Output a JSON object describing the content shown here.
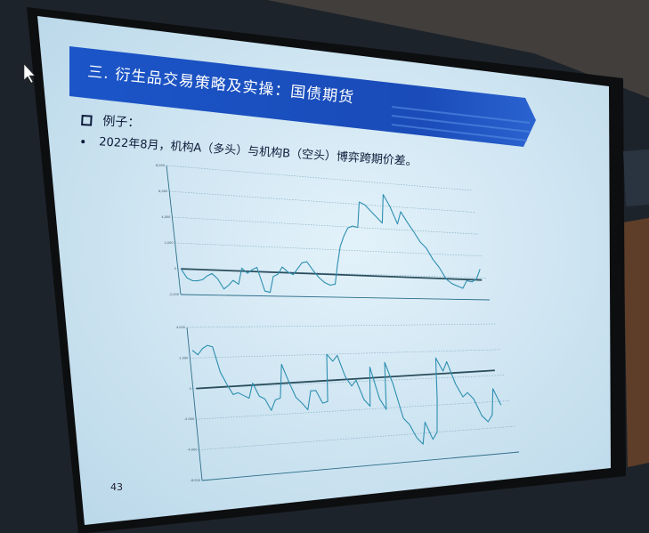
{
  "slide": {
    "title": "三. 衍生品交易策略及实操：国债期货",
    "bullet_1": "例子：",
    "bullet_2": "2022年8月，机构A（多头）与机构B（空头）博弈跨期价差。",
    "page_number": "43",
    "colors": {
      "banner": "#1a4fc0",
      "slide_bg": "#cfe7f4",
      "line": "#2d8fb0",
      "trend": "#2a4d5c"
    }
  },
  "chart_data": [
    {
      "type": "line",
      "ylim": [
        -2000,
        8000
      ],
      "yticks": [
        "8,000",
        "6,000",
        "4,000",
        "2,000",
        "0",
        "-2,000"
      ],
      "grid": true,
      "values": [
        0,
        -700,
        -900,
        -900,
        -800,
        -500,
        -300,
        -700,
        -1500,
        -1200,
        -800,
        -1100,
        200,
        -200,
        100,
        300,
        -1600,
        -1700,
        -400,
        -200,
        400,
        0,
        -200,
        300,
        800,
        900,
        200,
        -400,
        -800,
        -1000,
        -900,
        800,
        2300,
        3200,
        3900,
        4100,
        4000,
        6200,
        6000,
        5500,
        5000,
        4500,
        7000,
        6000,
        4500,
        5600,
        4700,
        3900,
        3000,
        2500,
        1500,
        800,
        -200,
        -600,
        -800,
        -1000,
        -300,
        -400,
        -100,
        800
      ],
      "trend": [
        0,
        -200
      ]
    },
    {
      "type": "line",
      "ylim": [
        -6,
        4
      ],
      "yticks": [
        "4.000",
        "2.000",
        "0",
        "-2.000",
        "-4.000",
        "-6.000"
      ],
      "grid": true,
      "values": [
        2.5,
        2.2,
        2.6,
        2.8,
        2.7,
        1.0,
        0.2,
        -0.5,
        -0.4,
        -0.6,
        -0.8,
        0.2,
        -0.7,
        -0.9,
        -1.7,
        -1.0,
        -0.9,
        1.4,
        0.2,
        -0.9,
        -1.3,
        -1.8,
        -0.5,
        -0.5,
        -1.4,
        -1.3,
        2.0,
        1.5,
        1.9,
        0.4,
        -0.3,
        0.1,
        -1.3,
        -1.8,
        1.0,
        -1.3,
        -2.1,
        1.3,
        -0.3,
        -2.8,
        -3.3,
        -4.3,
        -4.8,
        -3.2,
        -4.5,
        -4.0,
        -1.6,
        1.5,
        0.5,
        1.2,
        -0.5,
        -1.5,
        -1.2,
        -1.7,
        -3.0,
        -3.5,
        -3.0,
        -1.0,
        -2.3
      ],
      "trend": [
        0,
        0.4
      ]
    }
  ]
}
